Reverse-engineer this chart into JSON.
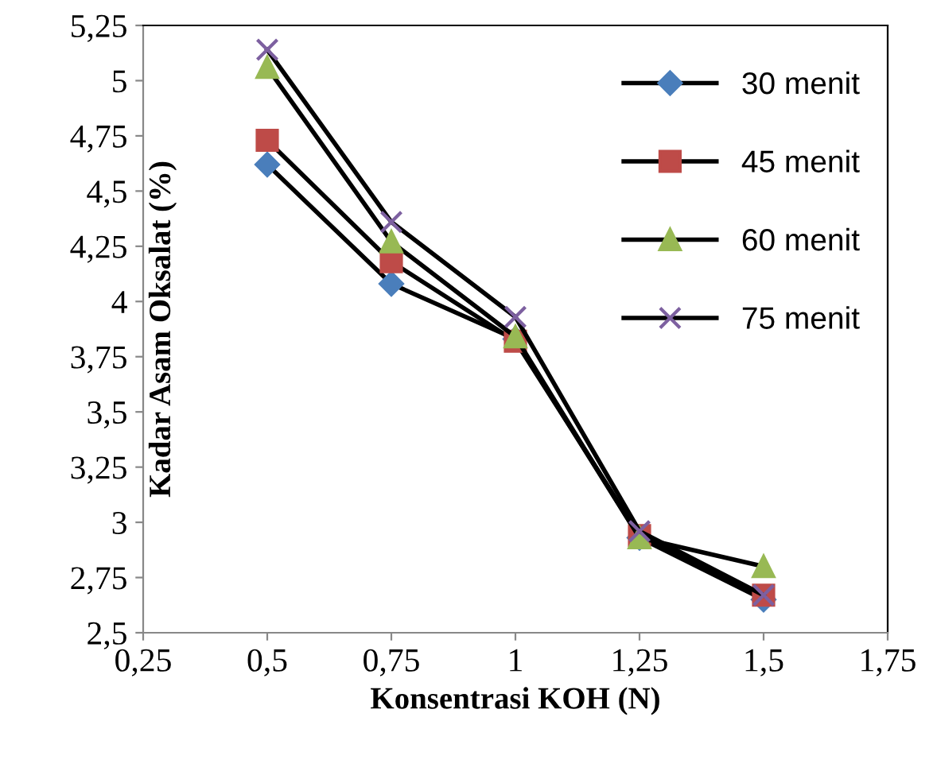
{
  "chart_data": {
    "type": "line",
    "xlabel": "Konsentrasi KOH (N)",
    "ylabel": "Kadar Asam Oksalat (%)",
    "x": [
      0.5,
      0.75,
      1,
      1.25,
      1.5
    ],
    "series": [
      {
        "name": "30 menit",
        "color": "#4a7ebb",
        "marker": "diamond",
        "values": [
          4.62,
          4.08,
          3.83,
          2.93,
          2.65
        ]
      },
      {
        "name": "45 menit",
        "color": "#be4b48",
        "marker": "square",
        "values": [
          4.73,
          4.18,
          3.82,
          2.94,
          2.67
        ]
      },
      {
        "name": "60 menit",
        "color": "#98b954",
        "marker": "triangle",
        "values": [
          5.06,
          4.27,
          3.84,
          2.93,
          2.8
        ]
      },
      {
        "name": "75 menit",
        "color": "#7d60a0",
        "marker": "cross",
        "values": [
          5.14,
          4.36,
          3.93,
          2.96,
          2.67
        ]
      }
    ],
    "xlim": [
      0.25,
      1.75
    ],
    "ylim": [
      2.5,
      5.25
    ],
    "xticks": [
      {
        "value": 0.25,
        "label": "0,25"
      },
      {
        "value": 0.5,
        "label": "0,5"
      },
      {
        "value": 0.75,
        "label": "0,75"
      },
      {
        "value": 1,
        "label": "1"
      },
      {
        "value": 1.25,
        "label": "1,25"
      },
      {
        "value": 1.5,
        "label": "1,5"
      },
      {
        "value": 1.75,
        "label": "1,75"
      }
    ],
    "yticks": [
      {
        "value": 2.5,
        "label": "2,5"
      },
      {
        "value": 2.75,
        "label": "2,75"
      },
      {
        "value": 3,
        "label": "3"
      },
      {
        "value": 3.25,
        "label": "3,25"
      },
      {
        "value": 3.5,
        "label": "3,5"
      },
      {
        "value": 3.75,
        "label": "3,75"
      },
      {
        "value": 4,
        "label": "4"
      },
      {
        "value": 4.25,
        "label": "4,25"
      },
      {
        "value": 4.5,
        "label": "4,5"
      },
      {
        "value": 4.75,
        "label": "4,75"
      },
      {
        "value": 5,
        "label": "5"
      },
      {
        "value": 5.25,
        "label": "5,25"
      }
    ],
    "grid": false,
    "legend": "top right",
    "line_style": "solid"
  }
}
